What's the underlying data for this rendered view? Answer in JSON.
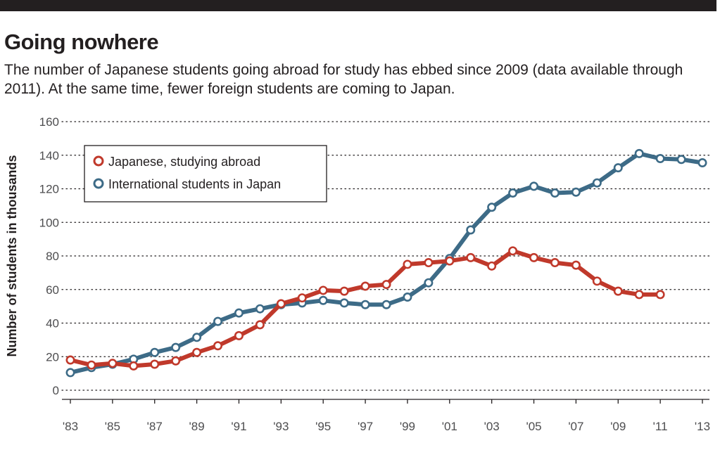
{
  "title": "Going nowhere",
  "subtitle": "The number of Japanese students going abroad for study has ebbed since 2009 (data available through 2011). At the same time, fewer foreign students are coming to Japan.",
  "chart_data": {
    "type": "line",
    "title": "Going nowhere",
    "xlabel": "",
    "ylabel": "Number of students in thousands",
    "ylim": [
      0,
      160
    ],
    "yticks": [
      0,
      20,
      40,
      60,
      80,
      100,
      120,
      140,
      160
    ],
    "xlim": [
      1983,
      2013
    ],
    "xticks": [
      1983,
      1985,
      1987,
      1989,
      1991,
      1993,
      1995,
      1997,
      1999,
      2001,
      2003,
      2005,
      2007,
      2009,
      2011,
      2013
    ],
    "xtick_labels": [
      "'83",
      "'85",
      "'87",
      "'89",
      "'91",
      "'93",
      "'95",
      "'97",
      "'99",
      "'01",
      "'03",
      "'05",
      "'07",
      "'09",
      "'11",
      "'13"
    ],
    "grid": "horizontal dotted",
    "legend_position": "top-left",
    "series": [
      {
        "name": "Japanese, studying abroad",
        "color": "#c0392b",
        "x": [
          1983,
          1984,
          1985,
          1986,
          1987,
          1988,
          1989,
          1990,
          1991,
          1992,
          1993,
          1994,
          1995,
          1996,
          1997,
          1998,
          1999,
          2000,
          2001,
          2002,
          2003,
          2004,
          2005,
          2006,
          2007,
          2008,
          2009,
          2010,
          2011
        ],
        "values": [
          18,
          15,
          16,
          14.5,
          15.5,
          17.5,
          22.5,
          26.5,
          32.5,
          39,
          51.5,
          55,
          59.5,
          59,
          62,
          63,
          75,
          76,
          77,
          79,
          74,
          83,
          79,
          76,
          74.5,
          65,
          59,
          57,
          57
        ]
      },
      {
        "name": "International students in Japan",
        "color": "#3d6b87",
        "x": [
          1983,
          1984,
          1985,
          1986,
          1987,
          1988,
          1989,
          1990,
          1991,
          1992,
          1993,
          1994,
          1995,
          1996,
          1997,
          1998,
          1999,
          2000,
          2001,
          2002,
          2003,
          2004,
          2005,
          2006,
          2007,
          2008,
          2009,
          2010,
          2011,
          2012,
          2013
        ],
        "values": [
          10.5,
          13.5,
          15.5,
          18.5,
          22.5,
          25.5,
          31.5,
          41,
          46,
          48.5,
          51,
          52,
          53.5,
          52,
          51,
          51,
          55.5,
          64,
          78.5,
          95.5,
          109,
          117.5,
          121.5,
          117.5,
          118,
          123.5,
          132.5,
          141,
          138,
          137.5,
          135.5
        ]
      }
    ]
  }
}
